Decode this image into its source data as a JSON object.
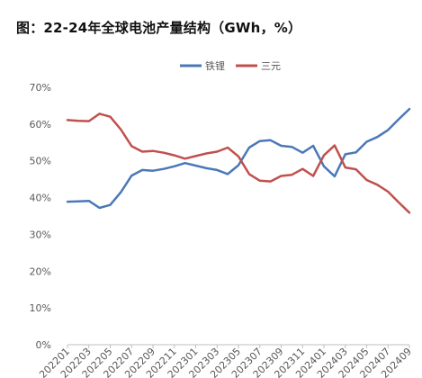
{
  "chart_data": {
    "type": "line",
    "title": "图：22-24年全球电池产量结构（GWh，%）",
    "x": [
      "202201",
      "202202",
      "202203",
      "202204",
      "202205",
      "202206",
      "202207",
      "202208",
      "202209",
      "202210",
      "202211",
      "202212",
      "202301",
      "202302",
      "202303",
      "202304",
      "202305",
      "202306",
      "202307",
      "202308",
      "202309",
      "202310",
      "202311",
      "202312",
      "202401",
      "202402",
      "202403",
      "202404",
      "202405",
      "202406",
      "202407",
      "202408",
      "202409"
    ],
    "x_tick_labels": [
      "202201",
      "202203",
      "202205",
      "202207",
      "202209",
      "202211",
      "202301",
      "202303",
      "202305",
      "202307",
      "202309",
      "202311",
      "202401",
      "202403",
      "202405",
      "202407",
      "202409"
    ],
    "y_tick_labels": [
      "0%",
      "10%",
      "20%",
      "30%",
      "40%",
      "50%",
      "60%",
      "70%"
    ],
    "ylim": [
      0,
      70
    ],
    "legend_position": "top-center",
    "series": [
      {
        "name": "铁锂",
        "color": "#4a78b8",
        "values": [
          38.9,
          39.0,
          39.1,
          37.2,
          38.0,
          41.5,
          46.0,
          47.5,
          47.3,
          47.8,
          48.5,
          49.4,
          48.7,
          48.0,
          47.5,
          46.4,
          48.8,
          53.6,
          55.4,
          55.6,
          54.1,
          53.8,
          52.2,
          54.1,
          48.5,
          45.8,
          51.8,
          52.3,
          55.2,
          56.5,
          58.4,
          61.3,
          64.1
        ]
      },
      {
        "name": "三元",
        "color": "#c0504d",
        "values": [
          61.1,
          60.9,
          60.8,
          62.8,
          62.0,
          58.5,
          54.0,
          52.5,
          52.7,
          52.2,
          51.5,
          50.6,
          51.3,
          52.0,
          52.5,
          53.6,
          51.2,
          46.4,
          44.6,
          44.4,
          45.9,
          46.2,
          47.8,
          45.9,
          51.5,
          54.2,
          48.2,
          47.7,
          44.8,
          43.5,
          41.6,
          38.7,
          35.9
        ]
      }
    ]
  }
}
